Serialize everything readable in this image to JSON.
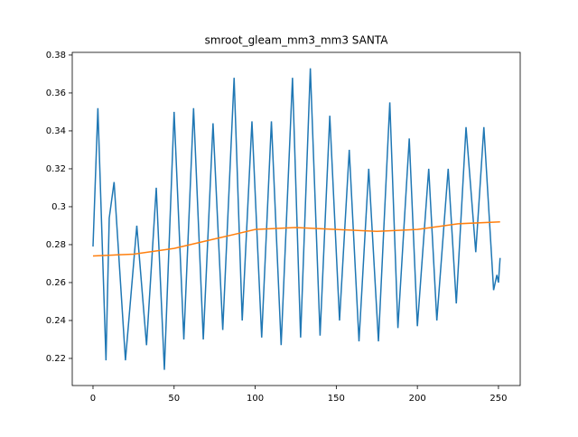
{
  "chart_data": {
    "type": "line",
    "title": "smroot_gleam_mm3_mm3 SANTA",
    "series": [
      {
        "color": "#1f77b4",
        "x": [
          0,
          3,
          8,
          10,
          13,
          20,
          27,
          33,
          39,
          44,
          50,
          56,
          62,
          68,
          74,
          80,
          87,
          92,
          98,
          104,
          110,
          116,
          123,
          128,
          134,
          140,
          146,
          152,
          158,
          164,
          170,
          176,
          183,
          188,
          195,
          200,
          207,
          212,
          219,
          224,
          230,
          236,
          241,
          247,
          249,
          250,
          251
        ],
        "values": [
          0.279,
          0.352,
          0.219,
          0.294,
          0.313,
          0.219,
          0.29,
          0.227,
          0.31,
          0.214,
          0.35,
          0.23,
          0.352,
          0.23,
          0.344,
          0.235,
          0.368,
          0.24,
          0.345,
          0.231,
          0.345,
          0.227,
          0.368,
          0.231,
          0.373,
          0.232,
          0.348,
          0.24,
          0.33,
          0.229,
          0.32,
          0.229,
          0.355,
          0.236,
          0.336,
          0.237,
          0.32,
          0.24,
          0.32,
          0.249,
          0.342,
          0.276,
          0.342,
          0.256,
          0.264,
          0.26,
          0.273
        ]
      },
      {
        "color": "#ff7f0e",
        "x": [
          0,
          25,
          50,
          75,
          100,
          125,
          150,
          175,
          200,
          225,
          251
        ],
        "values": [
          0.274,
          0.275,
          0.278,
          0.283,
          0.288,
          0.289,
          0.288,
          0.287,
          0.288,
          0.291,
          0.292
        ]
      }
    ],
    "xlim": [
      -12.8,
      263.4
    ],
    "xticks": [
      0,
      50,
      100,
      150,
      200,
      250
    ],
    "ylim": [
      0.2057,
      0.3814
    ],
    "yticks": [
      0.22,
      0.24,
      0.26,
      0.28,
      0.3,
      {
        "value": 0.32,
        "label": "0.32"
      },
      0.34,
      0.36,
      0.38
    ]
  }
}
